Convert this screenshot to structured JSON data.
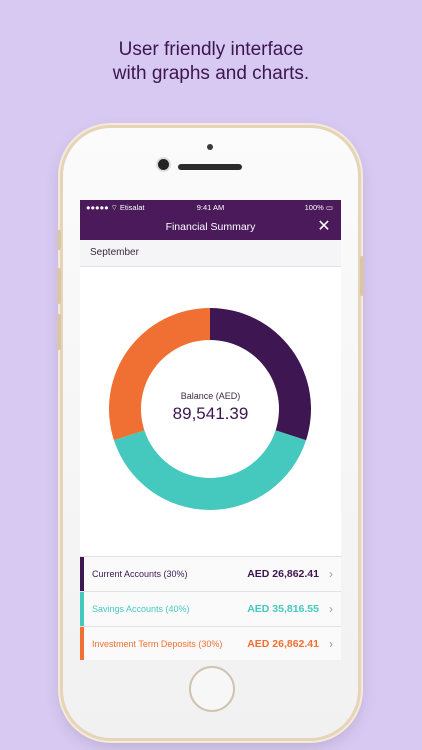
{
  "headline": {
    "line1": "User friendly interface",
    "line2": "with graphs and charts."
  },
  "status_bar": {
    "carrier": "●●●●● ⌔ Etisalat",
    "time": "9:41 AM",
    "battery": "100% ▭"
  },
  "navbar": {
    "title": "Financial Summary",
    "close_icon": "close-icon"
  },
  "month": "September",
  "chart_data": {
    "type": "pie",
    "style": "donut",
    "center_caption": "Balance (AED)",
    "center_value": "89,541.39",
    "slices": [
      {
        "name": "Current Accounts",
        "value": 30,
        "color": "#3d1652"
      },
      {
        "name": "Savings Accounts",
        "value": 40,
        "color": "#45c9be"
      },
      {
        "name": "Investment Term Deposits",
        "value": 30,
        "color": "#f06f32"
      }
    ]
  },
  "accounts": [
    {
      "label": "Current Accounts (30%)",
      "amount": "AED 26,862.41",
      "color": "#3d1652"
    },
    {
      "label": "Savings Accounts (40%)",
      "amount": "AED 35,816.55",
      "color": "#45c9be"
    },
    {
      "label": "Investment Term Deposits (30%)",
      "amount": "AED 26,862.41",
      "color": "#f06f32"
    }
  ]
}
